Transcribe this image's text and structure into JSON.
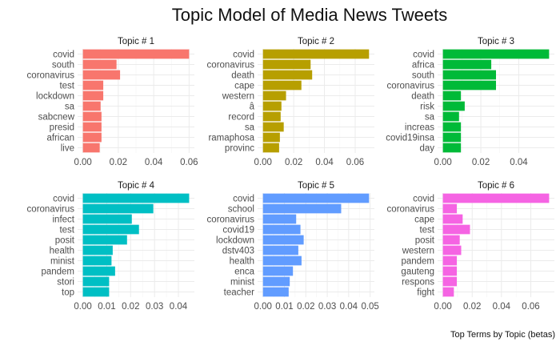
{
  "chart_data": {
    "type": "bar",
    "orientation": "horizontal",
    "title": "Topic Model of Media News Tweets",
    "caption": "Top Terms by Topic (betas)",
    "grid": true,
    "facets": [
      {
        "label": "Topic # 1",
        "color": "#F8766D",
        "terms": [
          "covid",
          "south",
          "coronavirus",
          "test",
          "lockdown",
          "sa",
          "sabcnew",
          "presid",
          "african",
          "live"
        ],
        "values": [
          0.06,
          0.019,
          0.021,
          0.0115,
          0.0115,
          0.01,
          0.0105,
          0.0105,
          0.0105,
          0.0095
        ],
        "xticks": [
          0.0,
          0.02,
          0.04,
          0.06
        ],
        "xtick_labels": [
          "0.00",
          "0.02",
          "0.04",
          "0.06"
        ],
        "xlim": [
          -0.003,
          0.063
        ]
      },
      {
        "label": "Topic # 2",
        "color": "#B79F00",
        "terms": [
          "covid",
          "coronavirus",
          "death",
          "cape",
          "western",
          "â",
          "record",
          "sa",
          "ramaphosa",
          "provinc"
        ],
        "values": [
          0.069,
          0.031,
          0.032,
          0.025,
          0.015,
          0.012,
          0.0115,
          0.0135,
          0.011,
          0.0105
        ],
        "xticks": [
          0.0,
          0.02,
          0.04,
          0.06
        ],
        "xtick_labels": [
          "0.00",
          "0.02",
          "0.04",
          "0.06"
        ],
        "xlim": [
          -0.0035,
          0.0725
        ]
      },
      {
        "label": "Topic # 3",
        "color": "#00BA38",
        "terms": [
          "covid",
          "africa",
          "south",
          "coronavirus",
          "death",
          "risk",
          "sa",
          "increas",
          "covid19insa",
          "day"
        ],
        "values": [
          0.056,
          0.0255,
          0.028,
          0.028,
          0.0095,
          0.0115,
          0.0085,
          0.0095,
          0.0095,
          0.0095
        ],
        "xticks": [
          0.0,
          0.02,
          0.04
        ],
        "xtick_labels": [
          "0.00",
          "0.02",
          "0.04"
        ],
        "xlim": [
          -0.0028,
          0.0588
        ]
      },
      {
        "label": "Topic # 4",
        "color": "#00BFC4",
        "terms": [
          "covid",
          "coronavirus",
          "infect",
          "test",
          "posit",
          "health",
          "minist",
          "pandem",
          "stori",
          "top"
        ],
        "values": [
          0.0445,
          0.0295,
          0.0205,
          0.0235,
          0.0185,
          0.0125,
          0.012,
          0.0135,
          0.011,
          0.011
        ],
        "xticks": [
          0.0,
          0.01,
          0.02,
          0.03,
          0.04
        ],
        "xtick_labels": [
          "0.00",
          "0.01",
          "0.02",
          "0.03",
          "0.04"
        ],
        "xlim": [
          -0.0022,
          0.0467
        ]
      },
      {
        "label": "Topic # 5",
        "color": "#619CFF",
        "terms": [
          "covid",
          "school",
          "coronavirus",
          "covid19",
          "lockdown",
          "dstv403",
          "health",
          "enca",
          "minist",
          "teacher"
        ],
        "values": [
          0.0495,
          0.0365,
          0.0155,
          0.0175,
          0.019,
          0.0165,
          0.018,
          0.014,
          0.0125,
          0.012
        ],
        "xticks": [
          0.0,
          0.01,
          0.02,
          0.03,
          0.04,
          0.05
        ],
        "xtick_labels": [
          "0.00",
          "0.01",
          "0.02",
          "0.03",
          "0.04",
          "0.05"
        ],
        "xlim": [
          -0.0025,
          0.052
        ]
      },
      {
        "label": "Topic # 6",
        "color": "#F564E3",
        "terms": [
          "covid",
          "coronavirus",
          "cape",
          "test",
          "posit",
          "western",
          "pandem",
          "gauteng",
          "respons",
          "fight"
        ],
        "values": [
          0.0725,
          0.0095,
          0.0135,
          0.0185,
          0.0115,
          0.0125,
          0.0095,
          0.0095,
          0.0095,
          0.0075
        ],
        "xticks": [
          0.0,
          0.02,
          0.04,
          0.06
        ],
        "xtick_labels": [
          "0.00",
          "0.02",
          "0.04",
          "0.06"
        ],
        "xlim": [
          -0.0036,
          0.0761
        ]
      }
    ]
  }
}
